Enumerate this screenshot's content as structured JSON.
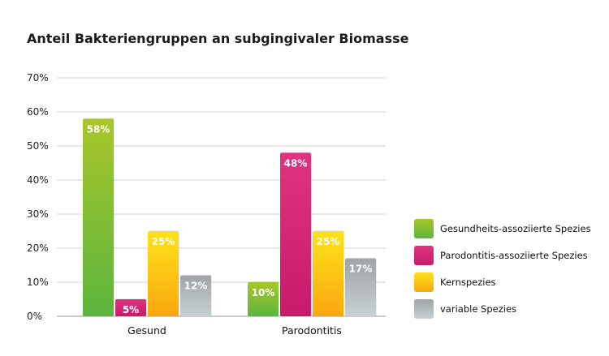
{
  "chart_data": {
    "type": "bar",
    "title": "Anteil Bakteriengruppen an subgingivaler Biomasse",
    "xlabel": "",
    "ylabel": "",
    "ylim": [
      0,
      70
    ],
    "yticks": [
      "0%",
      "10%",
      "20%",
      "30%",
      "40%",
      "50%",
      "60%",
      "70%"
    ],
    "grid": true,
    "legend_position": "right",
    "categories": [
      "Gesund",
      "Parodontitis"
    ],
    "series": [
      {
        "name": "Gesundheits-assoziierte Spezies",
        "values": [
          58,
          10
        ],
        "labels": [
          "58%",
          "10%"
        ],
        "color": "#8cc63f"
      },
      {
        "name": "Parodontitis-assoziierte Spezies",
        "values": [
          5,
          48
        ],
        "labels": [
          "5%",
          "48%"
        ],
        "color": "#d9217a"
      },
      {
        "name": "Kernspezies",
        "values": [
          25,
          25
        ],
        "labels": [
          "25%",
          "25%"
        ],
        "color": "#fbc316"
      },
      {
        "name": "variable Spezies",
        "values": [
          12,
          17
        ],
        "labels": [
          "12%",
          "17%"
        ],
        "color": "#b8c0c4"
      }
    ]
  }
}
